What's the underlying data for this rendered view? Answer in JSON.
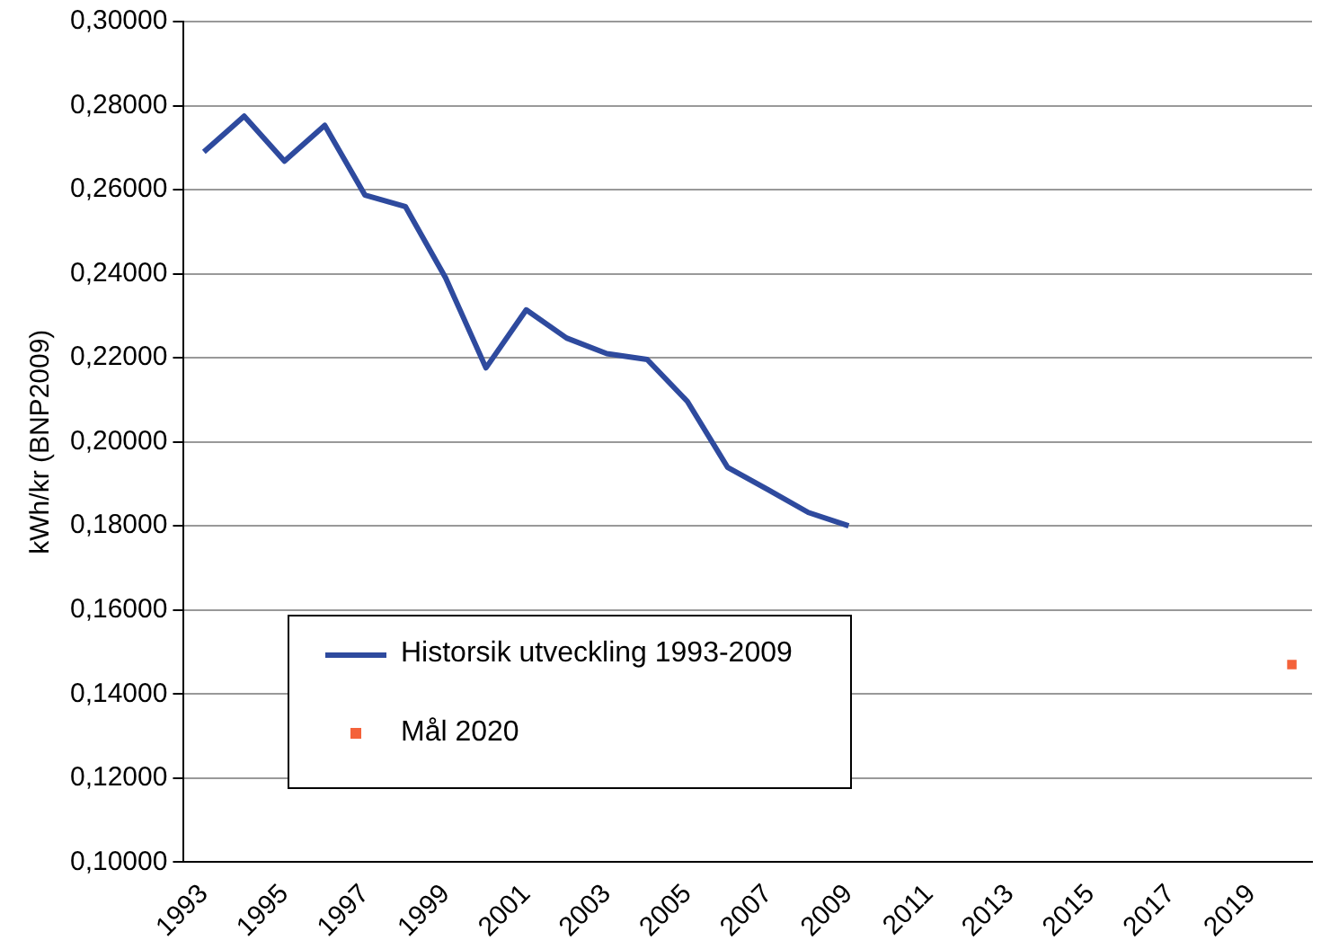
{
  "chart_data": {
    "type": "line",
    "ylabel": "kWh/kr (BNP2009)",
    "categories": [
      "1993",
      null,
      "1995",
      null,
      "1997",
      null,
      "1999",
      null,
      "2001",
      null,
      "2003",
      null,
      "2005",
      null,
      "2007",
      null,
      "2009",
      null,
      "2011",
      null,
      "2013",
      null,
      "2015",
      null,
      "2017",
      null,
      "2019",
      null
    ],
    "series": [
      {
        "name": "Historsik utveckling 1993-2009",
        "color": "#2e4a9e",
        "values": [
          0.269,
          0.2775,
          0.2668,
          0.2753,
          0.2587,
          0.256,
          0.239,
          0.2176,
          0.2314,
          0.2247,
          0.221,
          0.2196,
          0.2096,
          0.1939,
          0.1886,
          0.1832,
          0.18,
          null,
          null,
          null,
          null,
          null,
          null,
          null,
          null,
          null,
          null,
          null
        ]
      },
      {
        "name": "Mål 2020",
        "color": "#f4623a",
        "type": "scatter",
        "marker": "square",
        "values": [
          null,
          null,
          null,
          null,
          null,
          null,
          null,
          null,
          null,
          null,
          null,
          null,
          null,
          null,
          null,
          null,
          null,
          null,
          null,
          null,
          null,
          null,
          null,
          null,
          null,
          null,
          null,
          0.147
        ]
      }
    ],
    "ylim": [
      0.1,
      0.3
    ],
    "yticks": [
      {
        "value": 0.1,
        "label": "0,10000"
      },
      {
        "value": 0.12,
        "label": "0,12000"
      },
      {
        "value": 0.14,
        "label": "0,14000"
      },
      {
        "value": 0.16,
        "label": "0,16000"
      },
      {
        "value": 0.18,
        "label": "0,18000"
      },
      {
        "value": 0.2,
        "label": "0,20000"
      },
      {
        "value": 0.22,
        "label": "0,22000"
      },
      {
        "value": 0.24,
        "label": "0,24000"
      },
      {
        "value": 0.26,
        "label": "0,26000"
      },
      {
        "value": 0.28,
        "label": "0,28000"
      },
      {
        "value": 0.3,
        "label": "0,30000"
      }
    ],
    "grid": "y",
    "legend": "bottom left",
    "line_style": "solid",
    "marker": "none"
  }
}
